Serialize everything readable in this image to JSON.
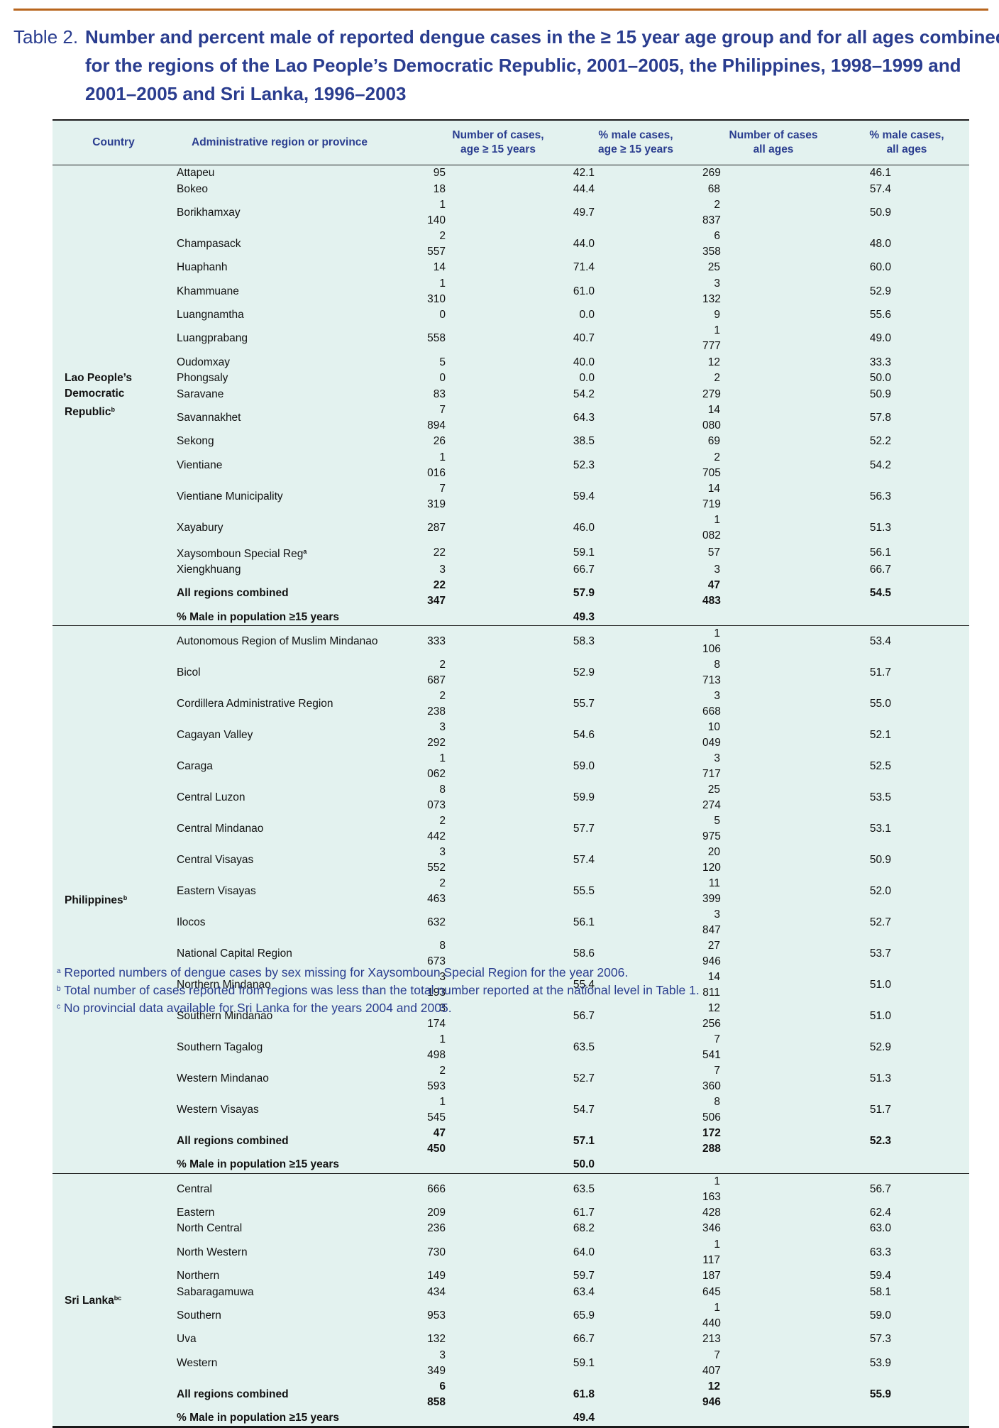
{
  "caption": {
    "label": "Table 2.",
    "line1": "Number and percent male of reported dengue cases in the ≥ 15 year age group and for all ages combined",
    "line2": "for the regions of the Lao People’s Democratic Republic, 2001–2005, the Philippines, 1998–1999 and",
    "line3": "2001–2005 and Sri Lanka, 1996–2003"
  },
  "headers": {
    "country": "Country",
    "region": "Administrative region or province",
    "cases15_l1": "Number of  cases,",
    "cases15_l2": "age ≥ 15 years",
    "male15_l1": "% male cases,",
    "male15_l2": "age ≥ 15 years",
    "casesall_l1": "Number of cases",
    "casesall_l2": "all ages",
    "maleall_l1": "% male cases,",
    "maleall_l2": "all ages"
  },
  "groups": [
    {
      "country_lines": [
        "Lao People’s",
        "Democratic",
        "Republic"
      ],
      "country_sup": "b",
      "rows": [
        {
          "region": "Attapeu",
          "sup": "",
          "c15": "95",
          "m15": "42.1",
          "call": "269",
          "mall": "46.1"
        },
        {
          "region": "Bokeo",
          "sup": "",
          "c15": "18",
          "m15": "44.4",
          "call": "68",
          "mall": "57.4"
        },
        {
          "region": "Borikhamxay",
          "sup": "",
          "c15": "1 140",
          "m15": "49.7",
          "call": "2 837",
          "mall": "50.9"
        },
        {
          "region": "Champasack",
          "sup": "",
          "c15": "2 557",
          "m15": "44.0",
          "call": "6 358",
          "mall": "48.0"
        },
        {
          "region": "Huaphanh",
          "sup": "",
          "c15": "14",
          "m15": "71.4",
          "call": "25",
          "mall": "60.0"
        },
        {
          "region": "Khammuane",
          "sup": "",
          "c15": "1 310",
          "m15": "61.0",
          "call": "3 132",
          "mall": "52.9"
        },
        {
          "region": "Luangnamtha",
          "sup": "",
          "c15": "0",
          "m15": "0.0",
          "call": "9",
          "mall": "55.6"
        },
        {
          "region": "Luangprabang",
          "sup": "",
          "c15": "558",
          "m15": "40.7",
          "call": "1 777",
          "mall": "49.0"
        },
        {
          "region": "Oudomxay",
          "sup": "",
          "c15": "5",
          "m15": "40.0",
          "call": "12",
          "mall": "33.3"
        },
        {
          "region": "Phongsaly",
          "sup": "",
          "c15": "0",
          "m15": "0.0",
          "call": "2",
          "mall": "50.0"
        },
        {
          "region": "Saravane",
          "sup": "",
          "c15": "83",
          "m15": "54.2",
          "call": "279",
          "mall": "50.9"
        },
        {
          "region": "Savannakhet",
          "sup": "",
          "c15": "7 894",
          "m15": "64.3",
          "call": "14 080",
          "mall": "57.8"
        },
        {
          "region": "Sekong",
          "sup": "",
          "c15": "26",
          "m15": "38.5",
          "call": "69",
          "mall": "52.2"
        },
        {
          "region": "Vientiane",
          "sup": "",
          "c15": "1 016",
          "m15": "52.3",
          "call": "2 705",
          "mall": "54.2"
        },
        {
          "region": "Vientiane Municipality",
          "sup": "",
          "c15": "7 319",
          "m15": "59.4",
          "call": "14 719",
          "mall": "56.3"
        },
        {
          "region": "Xayabury",
          "sup": "",
          "c15": "287",
          "m15": "46.0",
          "call": "1 082",
          "mall": "51.3"
        },
        {
          "region": "Xaysomboun Special Reg",
          "sup": "a",
          "c15": "22",
          "m15": "59.1",
          "call": "57",
          "mall": "56.1"
        },
        {
          "region": "Xiengkhuang",
          "sup": "",
          "c15": "3",
          "m15": "66.7",
          "call": "3",
          "mall": "66.7"
        }
      ],
      "total": {
        "region": "All regions combined",
        "c15": "22 347",
        "m15": "57.9",
        "call": "47 483",
        "mall": "54.5"
      },
      "pop": {
        "region": "% Male in population ≥15 years",
        "value": "49.3"
      }
    },
    {
      "country_lines": [
        "Philippines"
      ],
      "country_sup": "b",
      "rows": [
        {
          "region": "Autonomous Region of Muslim Mindanao",
          "sup": "",
          "c15": "333",
          "m15": "58.3",
          "call": "1 106",
          "mall": "53.4"
        },
        {
          "region": "Bicol",
          "sup": "",
          "c15": "2 687",
          "m15": "52.9",
          "call": "8 713",
          "mall": "51.7"
        },
        {
          "region": "Cordillera Administrative Region",
          "sup": "",
          "c15": "2 238",
          "m15": "55.7",
          "call": "3 668",
          "mall": "55.0"
        },
        {
          "region": "Cagayan Valley",
          "sup": "",
          "c15": "3 292",
          "m15": "54.6",
          "call": "10 049",
          "mall": "52.1"
        },
        {
          "region": "Caraga",
          "sup": "",
          "c15": "1 062",
          "m15": "59.0",
          "call": "3 717",
          "mall": "52.5"
        },
        {
          "region": "Central Luzon",
          "sup": "",
          "c15": "8 073",
          "m15": "59.9",
          "call": "25 274",
          "mall": "53.5"
        },
        {
          "region": "Central Mindanao",
          "sup": "",
          "c15": "2 442",
          "m15": "57.7",
          "call": "5 975",
          "mall": "53.1"
        },
        {
          "region": "Central Visayas",
          "sup": "",
          "c15": "3 552",
          "m15": "57.4",
          "call": "20 120",
          "mall": "50.9"
        },
        {
          "region": "Eastern Visayas",
          "sup": "",
          "c15": "2 463",
          "m15": "55.5",
          "call": "11 399",
          "mall": "52.0"
        },
        {
          "region": "Ilocos",
          "sup": "",
          "c15": "632",
          "m15": "56.1",
          "call": "3 847",
          "mall": "52.7"
        },
        {
          "region": "National Capital Region",
          "sup": "",
          "c15": "8 673",
          "m15": "58.6",
          "call": "27 946",
          "mall": "53.7"
        },
        {
          "region": "Northern Mindanao",
          "sup": "",
          "c15": "3 193",
          "m15": "55.4",
          "call": "14 811",
          "mall": "51.0"
        },
        {
          "region": "Southern Mindanao",
          "sup": "",
          "c15": "3 174",
          "m15": "56.7",
          "call": "12 256",
          "mall": "51.0"
        },
        {
          "region": "Southern Tagalog",
          "sup": "",
          "c15": "1 498",
          "m15": "63.5",
          "call": "7 541",
          "mall": "52.9"
        },
        {
          "region": "Western Mindanao",
          "sup": "",
          "c15": "2 593",
          "m15": "52.7",
          "call": "7 360",
          "mall": "51.3"
        },
        {
          "region": "Western Visayas",
          "sup": "",
          "c15": "1 545",
          "m15": "54.7",
          "call": "8 506",
          "mall": "51.7"
        }
      ],
      "total": {
        "region": "All regions combined",
        "c15": "47 450",
        "m15": "57.1",
        "call": "172 288",
        "mall": "52.3"
      },
      "pop": {
        "region": "% Male in population ≥15 years",
        "value": "50.0"
      }
    },
    {
      "country_lines": [
        "Sri Lanka"
      ],
      "country_sup": "bc",
      "rows": [
        {
          "region": "Central",
          "sup": "",
          "c15": "666",
          "m15": "63.5",
          "call": "1 163",
          "mall": "56.7"
        },
        {
          "region": "Eastern",
          "sup": "",
          "c15": "209",
          "m15": "61.7",
          "call": "428",
          "mall": "62.4"
        },
        {
          "region": "North Central",
          "sup": "",
          "c15": "236",
          "m15": "68.2",
          "call": "346",
          "mall": "63.0"
        },
        {
          "region": "North Western",
          "sup": "",
          "c15": "730",
          "m15": "64.0",
          "call": "1 117",
          "mall": "63.3"
        },
        {
          "region": "Northern",
          "sup": "",
          "c15": "149",
          "m15": "59.7",
          "call": "187",
          "mall": "59.4"
        },
        {
          "region": "Sabaragamuwa",
          "sup": "",
          "c15": "434",
          "m15": "63.4",
          "call": "645",
          "mall": "58.1"
        },
        {
          "region": "Southern",
          "sup": "",
          "c15": "953",
          "m15": "65.9",
          "call": "1 440",
          "mall": "59.0"
        },
        {
          "region": "Uva",
          "sup": "",
          "c15": "132",
          "m15": "66.7",
          "call": "213",
          "mall": "57.3"
        },
        {
          "region": "Western",
          "sup": "",
          "c15": "3 349",
          "m15": "59.1",
          "call": "7 407",
          "mall": "53.9"
        }
      ],
      "total": {
        "region": "All regions combined",
        "c15": "6 858",
        "m15": "61.8",
        "call": "12 946",
        "mall": "55.9"
      },
      "pop": {
        "region": "% Male in population ≥15 years",
        "value": "49.4"
      }
    }
  ],
  "footnotes": [
    {
      "mark": "a",
      "text": "Reported numbers of dengue cases by sex missing for Xaysomboun Special Region for the year 2006."
    },
    {
      "mark": "b",
      "text": "Total number of cases reported from regions was less than the total number reported at the national level in Table 1."
    },
    {
      "mark": "c",
      "text": "No provincial data available for Sri Lanka for the years 2004 and 2005."
    }
  ]
}
